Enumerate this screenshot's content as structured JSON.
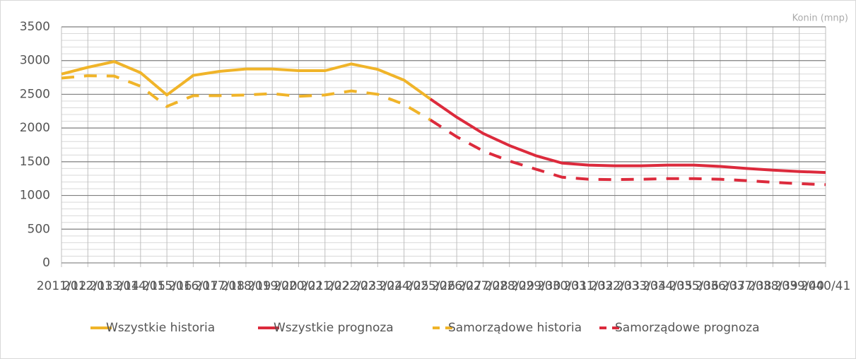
{
  "chart_data": {
    "type": "line",
    "annotation": "Konin (mnp)",
    "categories": [
      "2011/12",
      "2012/13",
      "2013/14",
      "2014/15",
      "2015/16",
      "2016/17",
      "2017/18",
      "2018/19",
      "2019/20",
      "2020/21",
      "2021/22",
      "2022/23",
      "2023/24",
      "2024/25",
      "2025/26",
      "2026/27",
      "2027/28",
      "2028/29",
      "2029/30",
      "2030/31",
      "2031/32",
      "2032/33",
      "2033/34",
      "2034/35",
      "2035/36",
      "2036/37",
      "2037/38",
      "2038/39",
      "2039/40",
      "2040/41"
    ],
    "series": [
      {
        "name": "Wszystkie historia",
        "color": "#f0b429",
        "dash": false,
        "values": [
          2800,
          2900,
          2985,
          2820,
          2490,
          2780,
          2840,
          2875,
          2875,
          2850,
          2850,
          2950,
          2870,
          2710,
          2430,
          null,
          null,
          null,
          null,
          null,
          null,
          null,
          null,
          null,
          null,
          null,
          null,
          null,
          null,
          null
        ]
      },
      {
        "name": "Wszystkie prognoza",
        "color": "#dc2a3c",
        "dash": false,
        "values": [
          null,
          null,
          null,
          null,
          null,
          null,
          null,
          null,
          null,
          null,
          null,
          null,
          null,
          null,
          2430,
          2160,
          1920,
          1740,
          1590,
          1480,
          1450,
          1440,
          1440,
          1450,
          1450,
          1430,
          1400,
          1375,
          1355,
          1340
        ]
      },
      {
        "name": "Samorządowe historia",
        "color": "#f0b429",
        "dash": true,
        "values": [
          2740,
          2775,
          2770,
          2620,
          2320,
          2480,
          2480,
          2490,
          2510,
          2470,
          2490,
          2550,
          2500,
          2350,
          2120,
          null,
          null,
          null,
          null,
          null,
          null,
          null,
          null,
          null,
          null,
          null,
          null,
          null,
          null,
          null
        ]
      },
      {
        "name": "Samorządowe prognoza",
        "color": "#dc2a3c",
        "dash": true,
        "values": [
          null,
          null,
          null,
          null,
          null,
          null,
          null,
          null,
          null,
          null,
          null,
          null,
          null,
          null,
          2120,
          1870,
          1660,
          1510,
          1390,
          1270,
          1240,
          1235,
          1240,
          1250,
          1250,
          1240,
          1220,
          1195,
          1175,
          1160
        ]
      }
    ],
    "ylim": [
      0,
      3500
    ],
    "yticks": [
      0,
      500,
      1000,
      1500,
      2000,
      2500,
      3000,
      3500
    ],
    "grid": true
  }
}
